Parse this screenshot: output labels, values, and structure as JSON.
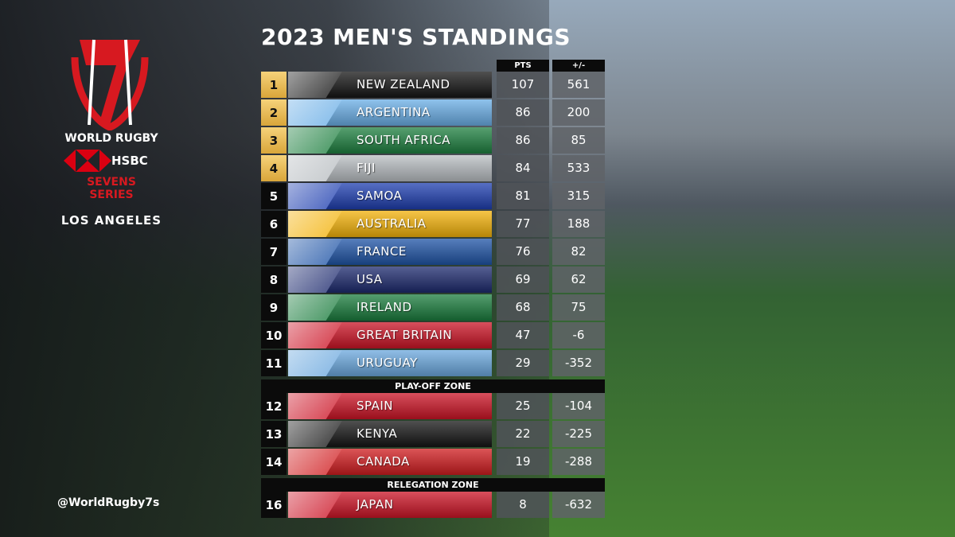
{
  "header": {
    "title": "2023 MEN'S STANDINGS"
  },
  "branding": {
    "organisation": "WORLD RUGBY",
    "sponsor": "HSBC",
    "series": "SEVENS SERIES",
    "venue": "LOS ANGELES",
    "handle": "@WorldRugby7s"
  },
  "table": {
    "columns": [
      "PTS",
      "+/-"
    ],
    "groups": [
      {
        "rows": [
          {
            "rank": 1,
            "team": "NEW ZEALAND",
            "pts": 107,
            "diff": 561,
            "color": "#151515"
          },
          {
            "rank": 2,
            "team": "ARGENTINA",
            "pts": 86,
            "diff": 200,
            "color": "#6aaee6"
          },
          {
            "rank": 3,
            "team": "SOUTH AFRICA",
            "pts": 86,
            "diff": 85,
            "color": "#1e8040"
          },
          {
            "rank": 4,
            "team": "FIJI",
            "pts": 84,
            "diff": 533,
            "color": "#b9bec2"
          },
          {
            "rank": 5,
            "team": "SAMOA",
            "pts": 81,
            "diff": 315,
            "color": "#1f3fb0"
          },
          {
            "rank": 6,
            "team": "AUSTRALIA",
            "pts": 77,
            "diff": 188,
            "color": "#f3b20a"
          },
          {
            "rank": 7,
            "team": "FRANCE",
            "pts": 76,
            "diff": 82,
            "color": "#1f54a6"
          },
          {
            "rank": 8,
            "team": "USA",
            "pts": 69,
            "diff": 62,
            "color": "#1d2a6e"
          },
          {
            "rank": 9,
            "team": "IRELAND",
            "pts": 68,
            "diff": 75,
            "color": "#1b7d3e"
          },
          {
            "rank": 10,
            "team": "GREAT BRITAIN",
            "pts": 47,
            "diff": -6,
            "color": "#cc1426"
          },
          {
            "rank": 11,
            "team": "URUGUAY",
            "pts": 29,
            "diff": -352,
            "color": "#6ba8de"
          }
        ]
      },
      {
        "zone": "PLAY-OFF ZONE",
        "rows": [
          {
            "rank": 12,
            "team": "SPAIN",
            "pts": 25,
            "diff": -104,
            "color": "#cc1426"
          },
          {
            "rank": 13,
            "team": "KENYA",
            "pts": 22,
            "diff": -225,
            "color": "#151515"
          },
          {
            "rank": 14,
            "team": "CANADA",
            "pts": 19,
            "diff": -288,
            "color": "#d01c1f"
          }
        ]
      },
      {
        "zone": "RELEGATION ZONE",
        "rows": [
          {
            "rank": 16,
            "team": "JAPAN",
            "pts": 8,
            "diff": -632,
            "color": "#cc1426"
          }
        ]
      }
    ]
  }
}
